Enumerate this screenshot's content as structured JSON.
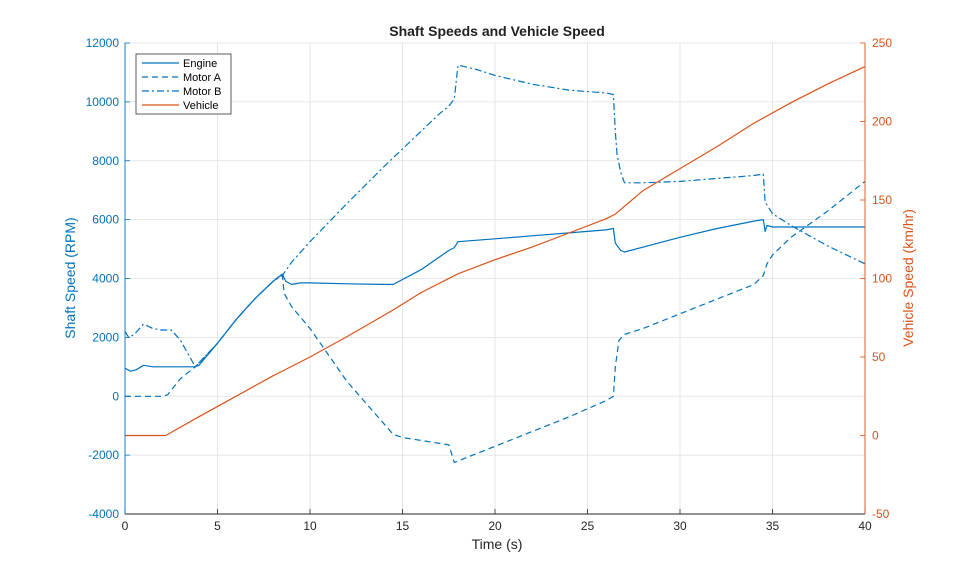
{
  "chart_data": {
    "type": "line",
    "title": "Shaft Speeds and Vehicle Speed",
    "xlabel": "Time (s)",
    "ylabel_left": "Shaft Speed (RPM)",
    "ylabel_right": "Vehicle Speed (km/hr)",
    "xlim": [
      0,
      40
    ],
    "ylim_left": [
      -4000,
      12000
    ],
    "ylim_right": [
      -50,
      250
    ],
    "x_ticks": [
      "0",
      "5",
      "10",
      "15",
      "20",
      "25",
      "30",
      "35",
      "40"
    ],
    "y_left_ticks": [
      "-4000",
      "-2000",
      "0",
      "2000",
      "4000",
      "6000",
      "8000",
      "10000",
      "12000"
    ],
    "y_right_ticks": [
      "-50",
      "0",
      "50",
      "100",
      "150",
      "200",
      "250"
    ],
    "grid": true,
    "legend_position": "top-left",
    "colors": {
      "left_axis": "#0072BD",
      "right_axis": "#D95319",
      "grid": "#dfdfdf",
      "axes": "#262626"
    },
    "series": [
      {
        "name": "Engine",
        "axis": "left",
        "style": "solid",
        "color": "#0072BD",
        "x": [
          0,
          0.3,
          0.6,
          1.0,
          1.5,
          2.0,
          2.5,
          3.0,
          3.5,
          3.8,
          4.0,
          5,
          6,
          7,
          8,
          8.5,
          8.7,
          9.0,
          9.5,
          10,
          12,
          14,
          14.5,
          16,
          17.5,
          17.8,
          18.0,
          20,
          22,
          24,
          26,
          26.4,
          26.5,
          26.8,
          27.0,
          30,
          32,
          34,
          34.5,
          34.6,
          34.7,
          35,
          36,
          38,
          40
        ],
        "y": [
          950,
          850,
          900,
          1050,
          1000,
          1000,
          1000,
          1000,
          1000,
          1000,
          1050,
          1800,
          2600,
          3300,
          3900,
          4150,
          3900,
          3800,
          3850,
          3850,
          3820,
          3800,
          3800,
          4300,
          4950,
          5050,
          5250,
          5350,
          5450,
          5550,
          5650,
          5700,
          5200,
          4950,
          4900,
          5400,
          5700,
          5950,
          6000,
          5600,
          5800,
          5750,
          5750,
          5750,
          5750
        ]
      },
      {
        "name": "Motor A",
        "axis": "left",
        "style": "dashed",
        "color": "#0072BD",
        "x": [
          0,
          1.0,
          2.0,
          2.3,
          3.0,
          3.8,
          5,
          6,
          7,
          8,
          8.5,
          8.6,
          9.0,
          10,
          12,
          14.5,
          15,
          17,
          17.5,
          17.8,
          18.0,
          20,
          22,
          24,
          26,
          26.4,
          26.5,
          26.7,
          27.0,
          28,
          30,
          32,
          34,
          34.5,
          34.7,
          35,
          36,
          38,
          40
        ],
        "y": [
          0,
          0,
          0,
          50,
          600,
          1000,
          1800,
          2600,
          3300,
          3900,
          4150,
          3500,
          3050,
          2300,
          500,
          -1300,
          -1400,
          -1600,
          -1650,
          -2250,
          -2200,
          -1700,
          -1200,
          -700,
          -150,
          0,
          1000,
          1900,
          2100,
          2300,
          2800,
          3300,
          3800,
          4100,
          4500,
          4800,
          5400,
          6300,
          7300
        ]
      },
      {
        "name": "Motor B",
        "axis": "left",
        "style": "dashdot",
        "color": "#0072BD",
        "x": [
          0,
          0.2,
          0.5,
          1.0,
          1.5,
          2.0,
          2.5,
          3.0,
          3.8,
          5,
          6,
          7,
          8,
          8.5,
          9,
          10,
          12,
          14,
          16,
          17,
          17.5,
          17.8,
          18.0,
          19,
          20,
          22,
          24,
          26,
          26.4,
          26.5,
          26.6,
          26.8,
          27.0,
          28,
          30,
          32,
          34,
          34.5,
          34.6,
          34.7,
          35,
          36,
          38,
          40
        ],
        "y": [
          2200,
          2000,
          2100,
          2450,
          2300,
          2250,
          2250,
          1900,
          1000,
          1800,
          2600,
          3300,
          3900,
          4100,
          4550,
          5250,
          6550,
          7800,
          9000,
          9600,
          9850,
          10100,
          11250,
          11100,
          10900,
          10600,
          10400,
          10300,
          10250,
          9000,
          8200,
          7600,
          7250,
          7250,
          7300,
          7400,
          7500,
          7550,
          6600,
          6500,
          6200,
          5800,
          5100,
          4500
        ]
      },
      {
        "name": "Vehicle",
        "axis": "right",
        "style": "solid",
        "color": "#D95319",
        "x": [
          0,
          1,
          2.2,
          2.5,
          4,
          6,
          8,
          8.5,
          10,
          12,
          14.5,
          16,
          18,
          20,
          22,
          24,
          26,
          26.5,
          28,
          30,
          32,
          34,
          36,
          38,
          40
        ],
        "y": [
          0,
          0,
          0,
          2,
          12,
          25,
          38,
          41,
          50,
          63,
          80,
          91,
          103,
          112,
          120,
          129,
          138,
          141,
          156,
          170,
          184,
          199,
          212,
          224,
          235
        ]
      }
    ]
  }
}
